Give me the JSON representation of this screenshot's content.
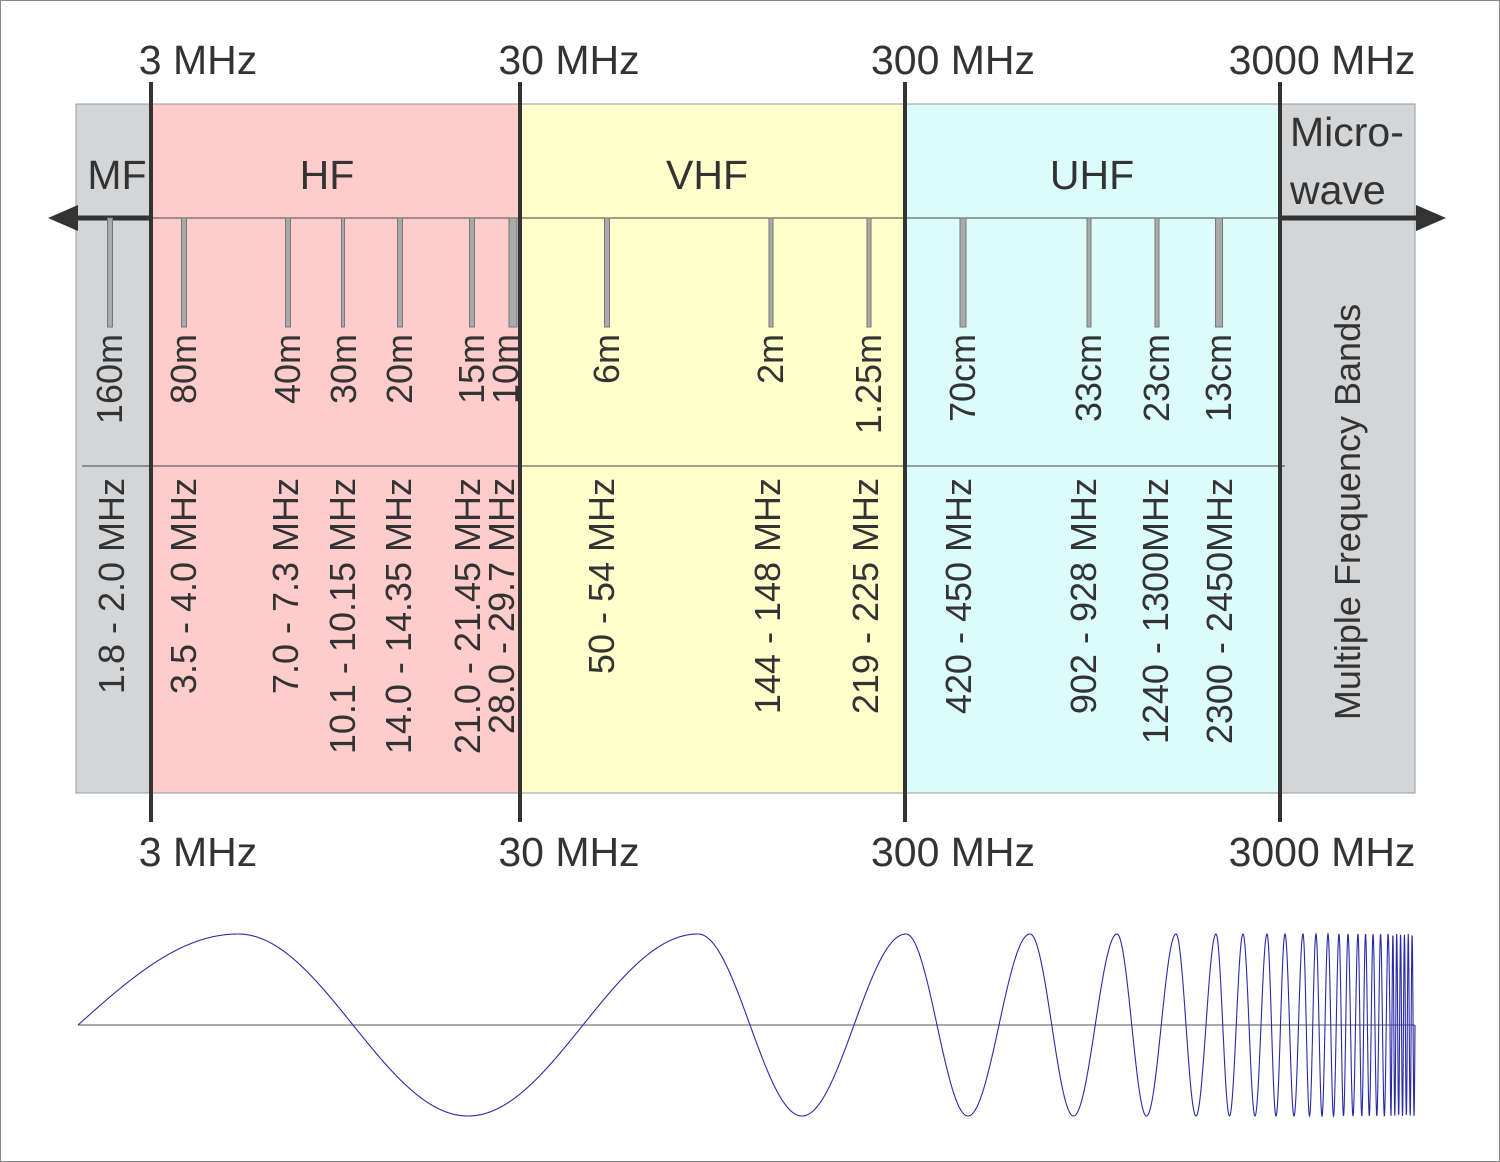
{
  "boundaries": [
    {
      "label": "3 MHz"
    },
    {
      "label": "30 MHz"
    },
    {
      "label": "300 MHz"
    },
    {
      "label": "3000 MHz"
    }
  ],
  "bands": [
    {
      "name": "MF",
      "color": "#d4d5d7"
    },
    {
      "name": "HF",
      "color": "#ffcccc"
    },
    {
      "name": "VHF",
      "color": "#ffffcc"
    },
    {
      "name": "UHF",
      "color": "#dcfcfc"
    },
    {
      "name_line1": "Micro-",
      "name_line2": "wave",
      "color": "#d4d5d7",
      "note": "Multiple Frequency Bands"
    }
  ],
  "amateur_bands": [
    {
      "wavelength": "160m",
      "frequency": "1.8 - 2.0 MHz"
    },
    {
      "wavelength": "80m",
      "frequency": "3.5 - 4.0 MHz"
    },
    {
      "wavelength": "40m",
      "frequency": "7.0 - 7.3 MHz"
    },
    {
      "wavelength": "30m",
      "frequency": "10.1 - 10.15 MHz"
    },
    {
      "wavelength": "20m",
      "frequency": "14.0 - 14.35 MHz"
    },
    {
      "wavelength": "15m",
      "frequency": "21.0 - 21.45 MHz"
    },
    {
      "wavelength": "10m",
      "frequency": "28.0 - 29.7 MHz"
    },
    {
      "wavelength": "6m",
      "frequency": "50 - 54 MHz"
    },
    {
      "wavelength": "2m",
      "frequency": "144 - 148 MHz"
    },
    {
      "wavelength": "1.25m",
      "frequency": "219 - 225 MHz"
    },
    {
      "wavelength": "70cm",
      "frequency": "420 - 450 MHz"
    },
    {
      "wavelength": "33cm",
      "frequency": "902 - 928 MHz"
    },
    {
      "wavelength": "23cm",
      "frequency": "1240 - 1300MHz"
    },
    {
      "wavelength": "13cm",
      "frequency": "2300 - 2450MHz"
    }
  ],
  "wave_color": "#2a2aa8"
}
